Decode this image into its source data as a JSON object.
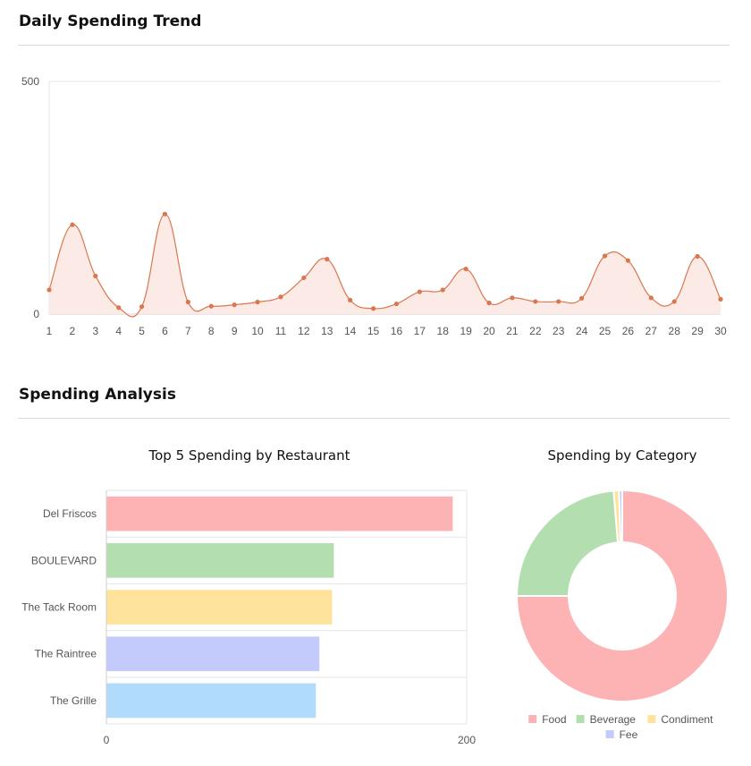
{
  "sections": {
    "trend_title": "Daily Spending Trend",
    "analysis_title": "Spending Analysis"
  },
  "colors": {
    "line": "#d9774f",
    "line_fill": "#fbeae5",
    "grid": "#e6e6e6",
    "bar_colors": [
      "#fdb2b4",
      "#b3dfb0",
      "#fee39a",
      "#c2cbfb",
      "#b1dbfd"
    ],
    "pie_colors": [
      "#fdb2b4",
      "#b3dfb0",
      "#fee39a",
      "#c2cbfb"
    ]
  },
  "chart_data": [
    {
      "type": "line",
      "title": "",
      "x": [
        1,
        2,
        3,
        4,
        5,
        6,
        7,
        8,
        9,
        10,
        11,
        12,
        13,
        14,
        15,
        16,
        17,
        18,
        19,
        20,
        21,
        22,
        23,
        24,
        25,
        26,
        27,
        28,
        29,
        30
      ],
      "series": [
        {
          "values": [
            52,
            192,
            82,
            14,
            16,
            215,
            26,
            17,
            20,
            26,
            37,
            78,
            118,
            30,
            12,
            22,
            48,
            52,
            97,
            24,
            35,
            27,
            27,
            34,
            125,
            115,
            35,
            27,
            124,
            32
          ]
        }
      ],
      "xlabel": "",
      "ylabel": "",
      "ylim": [
        0,
        500
      ],
      "yticks": [
        "0",
        "500"
      ],
      "grid": true,
      "smooth": true,
      "area_fill": true
    },
    {
      "type": "bar",
      "orientation": "horizontal",
      "title": "Top 5 Spending by Restaurant",
      "categories": [
        "Del Friscos",
        "BOULEVARD",
        "The Tack Room",
        "The Raintree",
        "The Grille"
      ],
      "values": [
        192,
        126,
        125,
        118,
        116
      ],
      "xlim": [
        0,
        200
      ],
      "xticks": [
        "0",
        "200"
      ],
      "grid": true
    },
    {
      "type": "pie",
      "variant": "doughnut",
      "title": "Spending by Category",
      "labels": [
        "Food",
        "Beverage",
        "Condiment",
        "Fee"
      ],
      "values": [
        75,
        23.7,
        0.8,
        0.5
      ],
      "legend": "bottom"
    }
  ]
}
